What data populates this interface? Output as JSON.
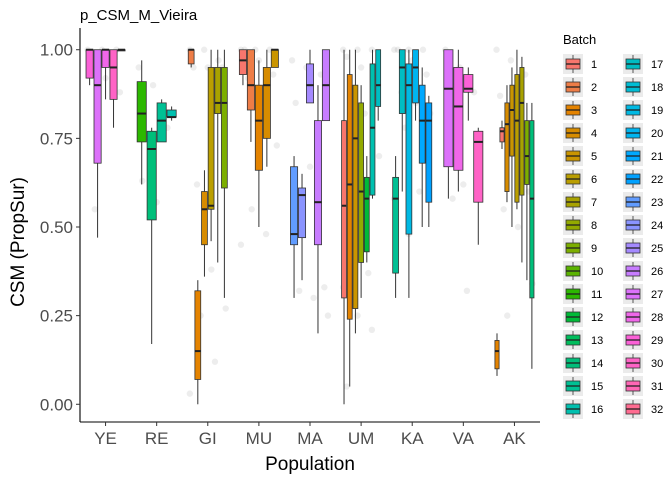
{
  "chart_data": {
    "type": "boxplot",
    "title": "p_CSM_M_Vieira",
    "xlabel": "Population",
    "ylabel": "CSM (PropSur)",
    "ylim": [
      -0.05,
      1.05
    ],
    "yticks": [
      0,
      0.25,
      0.5,
      0.75,
      1.0
    ],
    "ytick_labels": [
      "0.00",
      "0.25",
      "0.50",
      "0.75",
      "1.00"
    ],
    "categories": [
      "YE",
      "RE",
      "GI",
      "MU",
      "MA",
      "UM",
      "KA",
      "VA",
      "AK"
    ],
    "legend": {
      "title": "Batch",
      "position": "right",
      "entries": [
        "1",
        "2",
        "3",
        "4",
        "5",
        "6",
        "7",
        "8",
        "9",
        "10",
        "11",
        "12",
        "13",
        "14",
        "15",
        "16",
        "17",
        "18",
        "19",
        "20",
        "21",
        "22",
        "23",
        "24",
        "25",
        "26",
        "27",
        "28",
        "29",
        "30",
        "31",
        "32"
      ]
    },
    "batch_colors": [
      "#F8766D",
      "#EE7D47",
      "#E48300",
      "#D78C00",
      "#CA9500",
      "#BA9E00",
      "#A8A200",
      "#93AA00",
      "#7CAE00",
      "#5BB300",
      "#2CB800",
      "#00BA38",
      "#00BD5C",
      "#00BF7A",
      "#00C094",
      "#00C0AF",
      "#00BDC2",
      "#00BDD4",
      "#00B9E3",
      "#00B5F0",
      "#00A9FF",
      "#00A1FF",
      "#619CFF",
      "#8A94FF",
      "#A58AFF",
      "#C77CFF",
      "#DC71FA",
      "#F067E9",
      "#FB61D7",
      "#FF63C6",
      "#FF66B5",
      "#FF6C91"
    ],
    "groups": [
      {
        "population": "YE",
        "boxes": [
          {
            "batch": 29,
            "low": 0.9,
            "q1": 0.92,
            "median": 1.0,
            "q3": 1.0,
            "high": 1.0
          },
          {
            "batch": 27,
            "low": 0.47,
            "q1": 0.68,
            "median": 0.9,
            "q3": 1.0,
            "high": 1.0
          },
          {
            "batch": 28,
            "low": 0.86,
            "q1": 0.95,
            "median": 1.0,
            "q3": 1.0,
            "high": 1.0
          },
          {
            "batch": 30,
            "low": 0.78,
            "q1": 0.86,
            "median": 0.95,
            "q3": 1.0,
            "high": 1.0
          },
          {
            "batch": 31,
            "low": 1.0,
            "q1": 1.0,
            "median": 1.0,
            "q3": 1.0,
            "high": 1.0
          }
        ]
      },
      {
        "population": "RE",
        "boxes": [
          {
            "batch": 11,
            "low": 0.62,
            "q1": 0.74,
            "median": 0.82,
            "q3": 0.91,
            "high": 0.97
          },
          {
            "batch": 14,
            "low": 0.17,
            "q1": 0.52,
            "median": 0.72,
            "q3": 0.77,
            "high": 0.78
          },
          {
            "batch": 15,
            "low": 0.74,
            "q1": 0.74,
            "median": 0.8,
            "q3": 0.85,
            "high": 0.86
          },
          {
            "batch": 16,
            "low": 0.8,
            "q1": 0.81,
            "median": 0.81,
            "q3": 0.83,
            "high": 0.84
          }
        ]
      },
      {
        "population": "GI",
        "boxes": [
          {
            "batch": 2,
            "low": 0.95,
            "q1": 0.96,
            "median": 1.0,
            "q3": 1.0,
            "high": 1.0
          },
          {
            "batch": 3,
            "low": 0.0,
            "q1": 0.07,
            "median": 0.15,
            "q3": 0.32,
            "high": 0.35
          },
          {
            "batch": 4,
            "low": 0.36,
            "q1": 0.45,
            "median": 0.55,
            "q3": 0.6,
            "high": 0.66
          },
          {
            "batch": 6,
            "low": 0.46,
            "q1": 0.55,
            "median": 0.56,
            "q3": 0.95,
            "high": 1.0
          },
          {
            "batch": 7,
            "low": 0.4,
            "q1": 0.82,
            "median": 0.85,
            "q3": 0.95,
            "high": 1.0
          },
          {
            "batch": 9,
            "low": 0.3,
            "q1": 0.61,
            "median": 0.85,
            "q3": 0.95,
            "high": 1.0
          }
        ]
      },
      {
        "population": "MU",
        "boxes": [
          {
            "batch": 1,
            "low": 0.9,
            "q1": 0.93,
            "median": 0.97,
            "q3": 1.0,
            "high": 1.0
          },
          {
            "batch": 2,
            "low": 0.74,
            "q1": 0.83,
            "median": 0.9,
            "q3": 1.0,
            "high": 1.0
          },
          {
            "batch": 3,
            "low": 0.5,
            "q1": 0.66,
            "median": 0.8,
            "q3": 0.9,
            "high": 0.97
          },
          {
            "batch": 4,
            "low": 0.67,
            "q1": 0.75,
            "median": 0.9,
            "q3": 0.95,
            "high": 1.0
          },
          {
            "batch": 5,
            "low": 0.95,
            "q1": 0.95,
            "median": 1.0,
            "q3": 1.0,
            "high": 1.0
          }
        ]
      },
      {
        "population": "MA",
        "boxes": [
          {
            "batch": 23,
            "low": 0.3,
            "q1": 0.45,
            "median": 0.48,
            "q3": 0.67,
            "high": 0.7
          },
          {
            "batch": 24,
            "low": 0.35,
            "q1": 0.47,
            "median": 0.59,
            "q3": 0.61,
            "high": 0.65
          },
          {
            "batch": 25,
            "low": 0.85,
            "q1": 0.85,
            "median": 0.9,
            "q3": 0.96,
            "high": 1.0
          },
          {
            "batch": 26,
            "low": 0.2,
            "q1": 0.45,
            "median": 0.57,
            "q3": 0.8,
            "high": 0.9
          },
          {
            "batch": 26,
            "low": 0.8,
            "q1": 0.8,
            "median": 0.9,
            "q3": 1.0,
            "high": 1.0
          }
        ]
      },
      {
        "population": "UM",
        "boxes": [
          {
            "batch": 1,
            "low": 0.0,
            "q1": 0.3,
            "median": 0.56,
            "q3": 0.8,
            "high": 1.0
          },
          {
            "batch": 3,
            "low": 0.05,
            "q1": 0.24,
            "median": 0.62,
            "q3": 0.93,
            "high": 1.0
          },
          {
            "batch": 5,
            "low": 0.2,
            "q1": 0.27,
            "median": 0.75,
            "q3": 0.9,
            "high": 1.0
          },
          {
            "batch": 8,
            "low": 0.3,
            "q1": 0.4,
            "median": 0.6,
            "q3": 0.85,
            "high": 0.9
          },
          {
            "batch": 12,
            "low": 0.4,
            "q1": 0.43,
            "median": 0.58,
            "q3": 0.64,
            "high": 0.7
          },
          {
            "batch": 16,
            "low": 0.58,
            "q1": 0.59,
            "median": 0.78,
            "q3": 0.96,
            "high": 1.0
          },
          {
            "batch": 17,
            "low": 0.8,
            "q1": 0.84,
            "median": 0.9,
            "q3": 1.0,
            "high": 1.0
          }
        ]
      },
      {
        "population": "KA",
        "boxes": [
          {
            "batch": 15,
            "low": 0.3,
            "q1": 0.37,
            "median": 0.58,
            "q3": 0.64,
            "high": 0.7
          },
          {
            "batch": 17,
            "low": 0.6,
            "q1": 0.82,
            "median": 0.95,
            "q3": 1.0,
            "high": 1.0
          },
          {
            "batch": 19,
            "low": 0.3,
            "q1": 0.48,
            "median": 0.9,
            "q3": 0.96,
            "high": 1.0
          },
          {
            "batch": 20,
            "low": 0.8,
            "q1": 0.85,
            "median": 0.95,
            "q3": 1.0,
            "high": 1.0
          },
          {
            "batch": 21,
            "low": 0.5,
            "q1": 0.68,
            "median": 0.8,
            "q3": 0.9,
            "high": 0.95
          },
          {
            "batch": 22,
            "low": 0.5,
            "q1": 0.57,
            "median": 0.8,
            "q3": 0.85,
            "high": 0.87
          }
        ]
      },
      {
        "population": "VA",
        "boxes": [
          {
            "batch": 27,
            "low": 0.58,
            "q1": 0.67,
            "median": 0.89,
            "q3": 1.0,
            "high": 1.0
          },
          {
            "batch": 28,
            "low": 0.6,
            "q1": 0.66,
            "median": 0.84,
            "q3": 0.95,
            "high": 1.0
          },
          {
            "batch": 29,
            "low": 0.8,
            "q1": 0.88,
            "median": 0.89,
            "q3": 0.93,
            "high": 0.95
          },
          {
            "batch": 30,
            "low": 0.45,
            "q1": 0.57,
            "median": 0.74,
            "q3": 0.77,
            "high": 0.78
          }
        ]
      },
      {
        "population": "AK",
        "boxes": [
          {
            "batch": 3,
            "low": 0.08,
            "q1": 0.1,
            "median": 0.15,
            "q3": 0.18,
            "high": 0.2
          },
          {
            "batch": 1,
            "low": 0.72,
            "q1": 0.74,
            "median": 0.77,
            "q3": 0.78,
            "high": 0.8
          },
          {
            "batch": 4,
            "low": 0.57,
            "q1": 0.6,
            "median": 0.79,
            "q3": 0.85,
            "high": 0.9
          },
          {
            "batch": 5,
            "low": 0.5,
            "q1": 0.7,
            "median": 0.83,
            "q3": 0.9,
            "high": 0.95
          },
          {
            "batch": 6,
            "low": 0.55,
            "q1": 0.57,
            "median": 0.8,
            "q3": 0.93,
            "high": 1.0
          },
          {
            "batch": 7,
            "low": 0.4,
            "q1": 0.59,
            "median": 0.85,
            "q3": 0.95,
            "high": 0.98
          },
          {
            "batch": 9,
            "low": 0.35,
            "q1": 0.62,
            "median": 0.7,
            "q3": 0.8,
            "high": 0.85
          },
          {
            "batch": 14,
            "low": 0.1,
            "q1": 0.3,
            "median": 0.58,
            "q3": 0.8,
            "high": 0.85
          }
        ]
      }
    ],
    "outliers": [
      {
        "population": "YE",
        "values": [
          1.0,
          1.0,
          1.0,
          0.95,
          0.92,
          0.88,
          0.55
        ]
      },
      {
        "population": "RE",
        "values": [
          0.95,
          0.9,
          0.78,
          0.63,
          0.57
        ]
      },
      {
        "population": "GI",
        "values": [
          1.0,
          1.0,
          0.97,
          0.95,
          0.95,
          0.95,
          0.62,
          0.38,
          0.27,
          0.25,
          0.12,
          0.03
        ]
      },
      {
        "population": "MU",
        "values": [
          1.0,
          1.0,
          1.0,
          1.0,
          0.97,
          0.93,
          0.92,
          0.85,
          0.73,
          0.55,
          0.48,
          0.45
        ]
      },
      {
        "population": "MA",
        "values": [
          0.97,
          0.95,
          0.93,
          0.85,
          0.67,
          0.33,
          0.32,
          0.3,
          0.25
        ]
      },
      {
        "population": "UM",
        "values": [
          1.0,
          1.0,
          1.0,
          0.98,
          0.95,
          0.92,
          0.85,
          0.82,
          0.7,
          0.45,
          0.37,
          0.33,
          0.25,
          0.21,
          0.05
        ]
      },
      {
        "population": "KA",
        "values": [
          1.0,
          1.0,
          1.0,
          1.0,
          0.97,
          0.93,
          0.88,
          0.85,
          0.82,
          0.78,
          0.6,
          0.58,
          0.48
        ]
      },
      {
        "population": "VA",
        "values": [
          1.0,
          0.95,
          0.88,
          0.83,
          0.62,
          0.6,
          0.58,
          0.32
        ]
      },
      {
        "population": "AK",
        "values": [
          1.0,
          0.97,
          0.93,
          0.87,
          0.84,
          0.6,
          0.55,
          0.5,
          0.34,
          0.25
        ]
      }
    ],
    "grid": false
  }
}
